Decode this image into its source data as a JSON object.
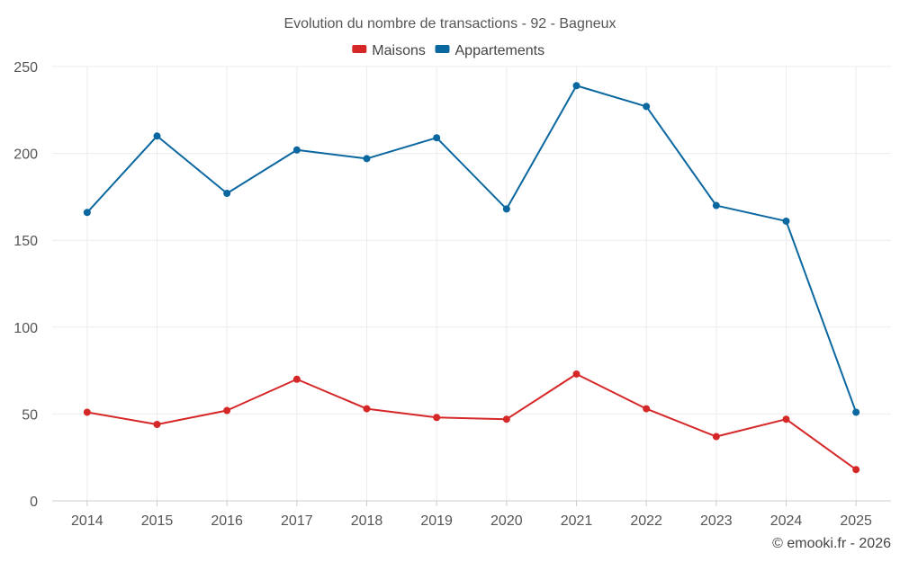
{
  "chart_data": {
    "type": "line",
    "title": "Evolution du nombre de transactions - 92 - Bagneux",
    "categories": [
      "2014",
      "2015",
      "2016",
      "2017",
      "2018",
      "2019",
      "2020",
      "2021",
      "2022",
      "2023",
      "2024",
      "2025"
    ],
    "series": [
      {
        "name": "Maisons",
        "color": "#d62728",
        "values": [
          51,
          44,
          52,
          70,
          53,
          48,
          47,
          73,
          53,
          37,
          47,
          18
        ]
      },
      {
        "name": "Appartements",
        "color": "#0b67a0",
        "values": [
          166,
          210,
          177,
          202,
          197,
          209,
          168,
          239,
          227,
          170,
          161,
          51
        ]
      }
    ],
    "ylim": [
      0,
      250
    ],
    "yticks": [
      0,
      50,
      100,
      150,
      200,
      250
    ],
    "xlabel": "",
    "ylabel": "",
    "legend_position": "top-center",
    "grid": true
  },
  "credit": "© emooki.fr - 2026"
}
